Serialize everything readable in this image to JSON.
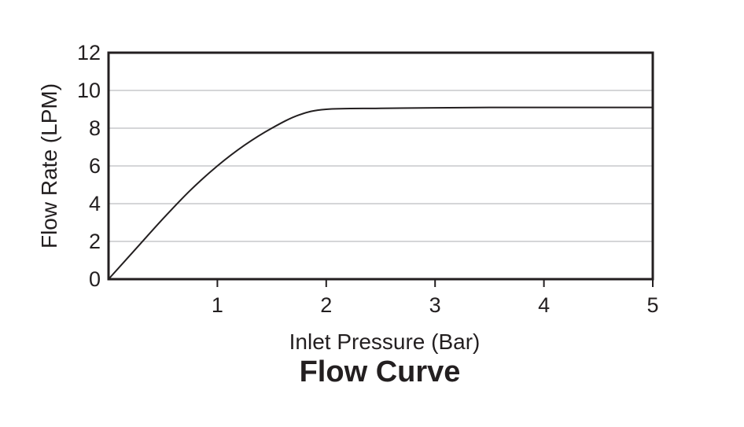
{
  "chart_data": {
    "type": "line",
    "title": "Flow Curve",
    "xlabel": "Inlet Pressure (Bar)",
    "ylabel": "Flow Rate (LPM)",
    "xlim": [
      0,
      5
    ],
    "ylim": [
      0,
      12
    ],
    "x_ticks": [
      1,
      2,
      3,
      4,
      5
    ],
    "y_ticks": [
      0,
      2,
      4,
      6,
      8,
      10,
      12
    ],
    "grid": "horizontal",
    "legend": "none",
    "colors": {
      "line": "#231f20",
      "grid": "#bcbdc0",
      "frame": "#231f20"
    },
    "series": [
      {
        "x": [
          0,
          0.25,
          0.5,
          0.75,
          1.0,
          1.25,
          1.5,
          1.75,
          2.0,
          2.5,
          3.0,
          3.5,
          4.0,
          4.5,
          5.0
        ],
        "values": [
          0,
          1.6,
          3.2,
          4.7,
          6.0,
          7.1,
          8.0,
          8.7,
          9.0,
          9.05,
          9.08,
          9.1,
          9.1,
          9.1,
          9.1
        ]
      }
    ]
  }
}
